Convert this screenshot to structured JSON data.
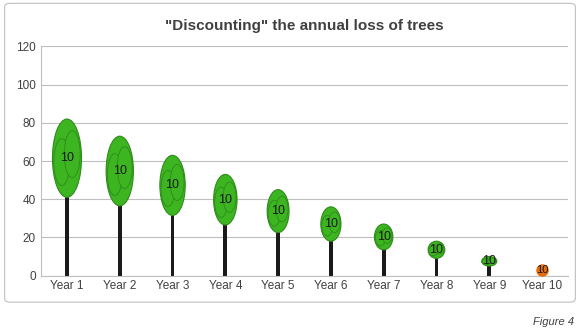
{
  "chart_data": {
    "type": "bar",
    "title": "\"Discounting\" the annual loss of trees",
    "categories": [
      "Year 1",
      "Year 2",
      "Year 3",
      "Year 4",
      "Year 5",
      "Year 6",
      "Year 7",
      "Year 8",
      "Year 9",
      "Year 10"
    ],
    "values": [
      82,
      73,
      63,
      53,
      45,
      36,
      27,
      18,
      10,
      3
    ],
    "colors": [
      "#3cb521",
      "#3cb521",
      "#3cb521",
      "#3cb521",
      "#3cb521",
      "#3cb521",
      "#3cb521",
      "#3cb521",
      "#3cb521",
      "#e46c0a"
    ],
    "annotations": [
      "10",
      "10",
      "10",
      "10",
      "10",
      "10",
      "10",
      "10",
      "10",
      "10"
    ],
    "caption": "Figure 4",
    "ylim": [
      0,
      120
    ],
    "yticks": [
      0,
      20,
      40,
      60,
      80,
      100,
      120
    ],
    "grid": true
  }
}
